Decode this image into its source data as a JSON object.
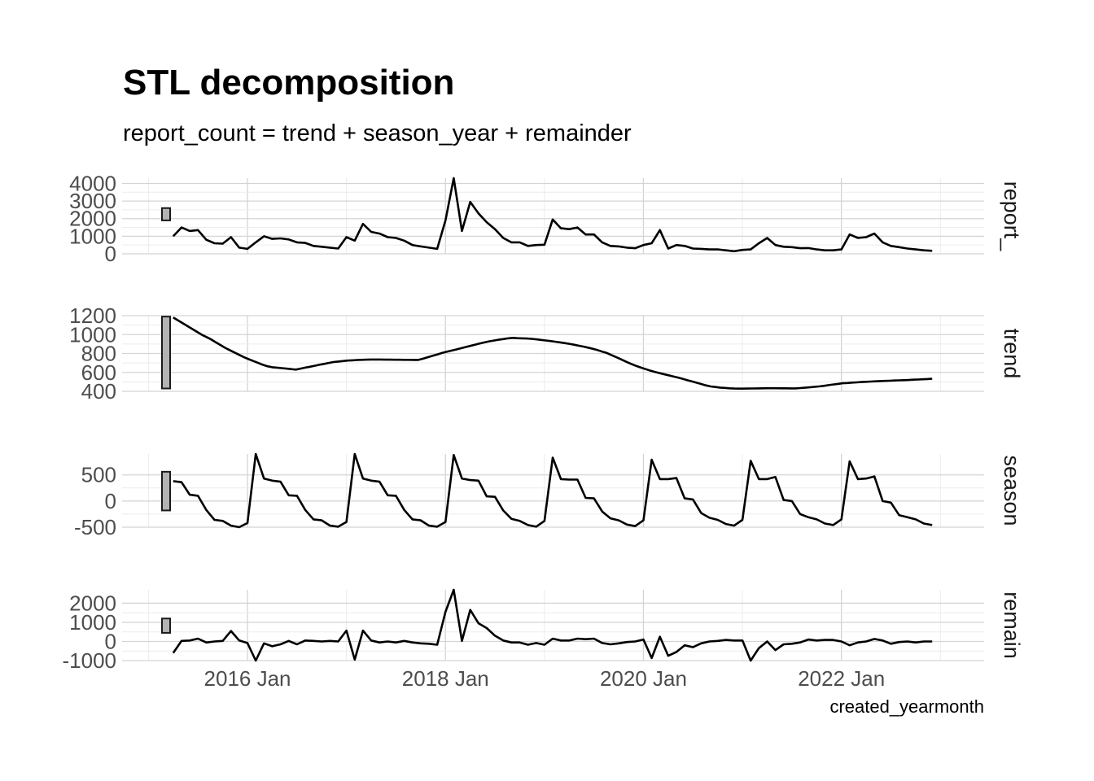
{
  "chart_data": {
    "type": "line",
    "title": "STL decomposition",
    "subtitle": "report_count = trend + season_year + remainder",
    "xlabel": "created_yearmonth",
    "x": {
      "start": "2015-04",
      "end": "2022-12",
      "tick_labels": [
        "2016 Jan",
        "2018 Jan",
        "2020 Jan",
        "2022 Jan"
      ],
      "tick_dates": [
        "2016-01",
        "2018-01",
        "2020-01",
        "2022-01"
      ]
    },
    "grid": true,
    "panels": [
      {
        "strip": "report_",
        "ylim": [
          0,
          4300
        ],
        "yticks": [
          0,
          1000,
          2000,
          3000,
          4000
        ],
        "ytick_labels": [
          "0",
          "1000",
          "2000",
          "3000",
          "4000"
        ],
        "scale_bar": [
          1900,
          2600
        ],
        "values": [
          1000,
          1500,
          1300,
          1350,
          800,
          600,
          580,
          950,
          350,
          280,
          650,
          1000,
          850,
          880,
          820,
          650,
          620,
          450,
          400,
          350,
          300,
          950,
          750,
          1700,
          1250,
          1150,
          950,
          900,
          750,
          500,
          420,
          350,
          280,
          1900,
          4300,
          1300,
          2950,
          2300,
          1800,
          1400,
          900,
          650,
          650,
          450,
          500,
          520,
          1950,
          1450,
          1400,
          1500,
          1100,
          1100,
          650,
          450,
          420,
          350,
          320,
          500,
          600,
          1350,
          300,
          500,
          450,
          300,
          280,
          250,
          250,
          200,
          150,
          220,
          250,
          600,
          900,
          500,
          400,
          380,
          320,
          330,
          250,
          200,
          200,
          250,
          1100,
          900,
          950,
          1150,
          650,
          450,
          380,
          300,
          250,
          200,
          170
        ]
      },
      {
        "strip": "trend",
        "ylim": [
          400,
          1200
        ],
        "yticks": [
          400,
          600,
          800,
          1000,
          1200
        ],
        "ytick_labels": [
          "400",
          "600",
          "800",
          "1000",
          "1200"
        ],
        "scale_bar": [
          430,
          1190
        ],
        "values": [
          1180,
          1150,
          1120,
          1090,
          1060,
          1030,
          1000,
          975,
          950,
          920,
          890,
          860,
          835,
          810,
          785,
          760,
          740,
          720,
          700,
          680,
          665,
          655,
          650,
          645,
          640,
          635,
          630,
          640,
          650,
          660,
          670,
          680,
          690,
          700,
          710,
          715,
          720,
          725,
          728,
          731,
          733,
          735,
          736,
          736,
          736,
          735,
          735,
          734,
          734,
          733,
          733,
          732,
          732,
          745,
          760,
          775,
          790,
          805,
          818,
          830,
          842,
          855,
          868,
          880,
          892,
          905,
          917,
          928,
          937,
          945,
          952,
          960,
          965,
          962,
          960,
          958,
          955,
          950,
          944,
          938,
          932,
          925,
          918,
          910,
          902,
          893,
          883,
          873,
          862,
          850,
          836,
          820,
          805,
          782,
          760,
          738,
          715,
          693,
          673,
          655,
          638,
          622,
          607,
          594,
          582,
          570,
          558,
          546,
          533,
          519,
          505,
          491,
          477,
          463,
          452,
          446,
          440,
          436,
          432,
          429,
          428,
          428,
          429,
          430,
          431,
          432,
          433,
          433,
          433,
          432,
          432,
          431,
          431,
          434,
          438,
          442,
          447,
          452,
          458,
          465,
          472,
          478,
          485,
          488,
          492,
          495,
          498,
          501,
          503,
          506,
          508,
          510,
          512,
          514,
          516,
          518,
          520,
          523,
          525,
          527,
          530,
          533
        ]
      },
      {
        "strip": "season",
        "ylim": [
          -500,
          900
        ],
        "yticks": [
          -500,
          0,
          500
        ],
        "ytick_labels": [
          "-500",
          "0",
          "500"
        ],
        "scale_bar": [
          -180,
          560
        ],
        "values": [
          380,
          360,
          120,
          100,
          -170,
          -360,
          -380,
          -470,
          -500,
          -420,
          900,
          430,
          390,
          370,
          110,
          100,
          -170,
          -350,
          -370,
          -470,
          -490,
          -400,
          900,
          430,
          390,
          370,
          110,
          100,
          -170,
          -350,
          -370,
          -470,
          -490,
          -400,
          880,
          430,
          400,
          390,
          90,
          80,
          -180,
          -340,
          -380,
          -460,
          -490,
          -380,
          830,
          420,
          410,
          410,
          60,
          50,
          -200,
          -330,
          -370,
          -450,
          -480,
          -370,
          790,
          420,
          420,
          440,
          50,
          30,
          -230,
          -320,
          -360,
          -440,
          -470,
          -360,
          770,
          420,
          420,
          460,
          20,
          0,
          -250,
          -310,
          -350,
          -430,
          -460,
          -350,
          760,
          420,
          430,
          470,
          0,
          -30,
          -270,
          -310,
          -350,
          -430,
          -460
        ]
      },
      {
        "strip": "remain",
        "ylim": [
          -1000,
          2700
        ],
        "yticks": [
          -1000,
          0,
          1000,
          2000
        ],
        "ytick_labels": [
          "-1000",
          "0",
          "1000",
          "2000"
        ],
        "scale_bar": [
          450,
          1200
        ],
        "values": [
          -600,
          30,
          50,
          150,
          -50,
          0,
          30,
          550,
          50,
          -80,
          -1000,
          -100,
          -250,
          -150,
          30,
          -150,
          50,
          30,
          0,
          30,
          0,
          570,
          -950,
          570,
          50,
          -50,
          0,
          -50,
          30,
          -50,
          -100,
          -120,
          -170,
          1550,
          2700,
          30,
          1650,
          950,
          700,
          300,
          50,
          -50,
          -50,
          -170,
          -80,
          -170,
          150,
          50,
          50,
          150,
          120,
          150,
          -80,
          -150,
          -100,
          -30,
          0,
          100,
          -870,
          250,
          -750,
          -550,
          -200,
          -300,
          -100,
          0,
          30,
          80,
          50,
          50,
          -1000,
          -350,
          0,
          -450,
          -150,
          -120,
          -50,
          100,
          50,
          80,
          80,
          0,
          -200,
          -50,
          0,
          130,
          50,
          -120,
          -30,
          0,
          -50,
          0,
          0
        ]
      }
    ]
  }
}
